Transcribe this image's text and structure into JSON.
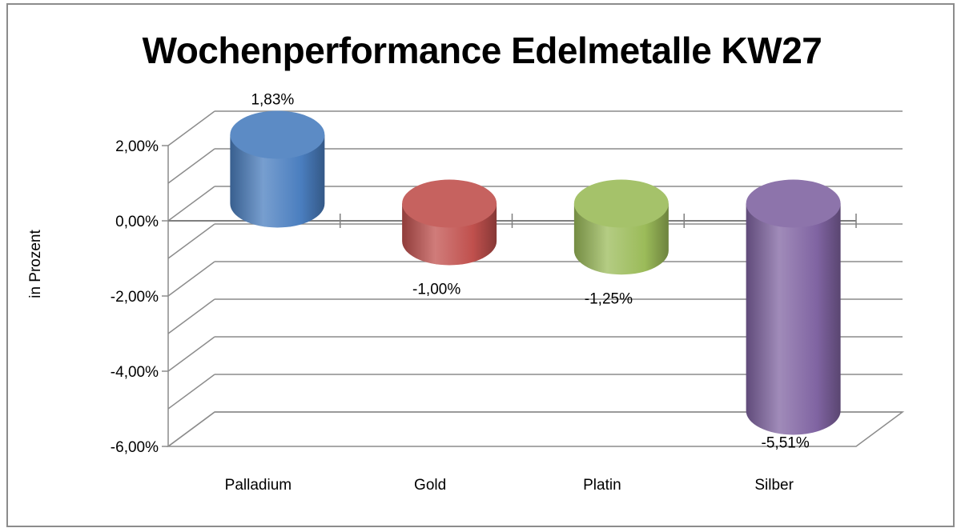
{
  "chart_data": {
    "type": "bar",
    "title": "Wochenperformance Edelmetalle KW27",
    "ylabel": "in Prozent",
    "xlabel": "",
    "categories": [
      "Palladium",
      "Gold",
      "Platin",
      "Silber"
    ],
    "values": [
      1.83,
      -1.0,
      -1.25,
      -5.51
    ],
    "value_labels": [
      "1,83%",
      "-1,00%",
      "-1,25%",
      "-5,51%"
    ],
    "yticks": [
      2,
      0,
      -2,
      -4,
      -6
    ],
    "ytick_labels": [
      "2,00%",
      "0,00%",
      "-2,00%",
      "-4,00%",
      "-6,00%"
    ],
    "ylim": [
      -6,
      2.5
    ],
    "grid": true,
    "legend": "none",
    "colors": [
      "#4a7ebf",
      "#c0504d",
      "#9bbb59",
      "#8064a2"
    ]
  }
}
